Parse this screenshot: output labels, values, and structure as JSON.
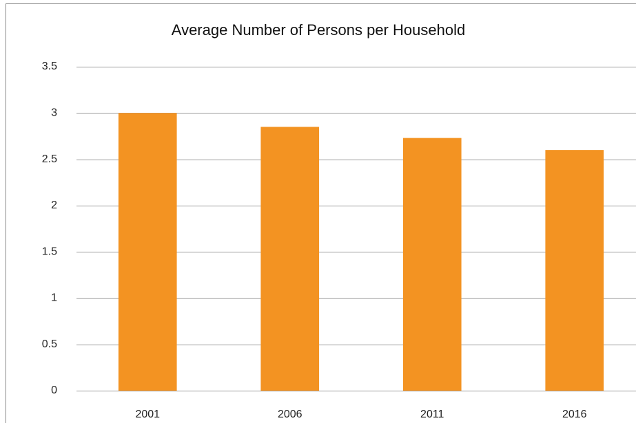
{
  "chart_data": {
    "type": "bar",
    "title": "Average Number of Persons per Household",
    "categories": [
      "2001",
      "2006",
      "2011",
      "2016"
    ],
    "values": [
      3.0,
      2.85,
      2.73,
      2.6
    ],
    "color": "#f39322",
    "ylim": [
      0,
      3.5
    ],
    "yticks": [
      0,
      0.5,
      1,
      1.5,
      2,
      2.5,
      3,
      3.5
    ],
    "grid": true
  }
}
